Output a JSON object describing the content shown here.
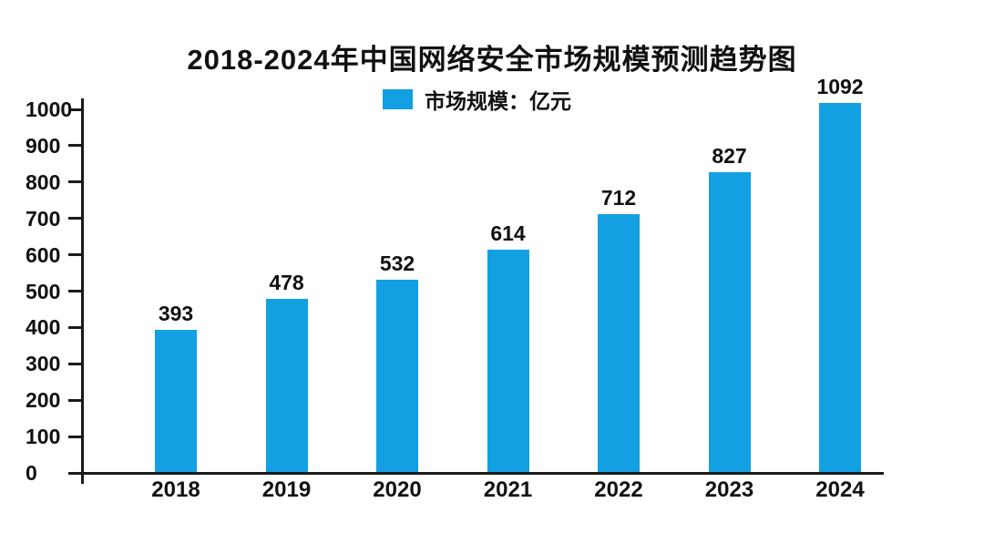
{
  "title": "2018-2024年中国网络安全市场规模预测趋势图",
  "legend": {
    "label": "市场规模：亿元"
  },
  "colors": {
    "bar": "#12A0E2",
    "axis": "#1a1a1a",
    "text": "#111111",
    "background": "#ffffff"
  },
  "chart_data": {
    "type": "bar",
    "title": "2018-2024年中国网络安全市场规模预测趋势图",
    "series_name": "市场规模：亿元",
    "categories": [
      "2018",
      "2019",
      "2020",
      "2021",
      "2022",
      "2023",
      "2024"
    ],
    "values": [
      393,
      478,
      532,
      614,
      712,
      827,
      1092
    ],
    "value_labels": [
      393,
      478,
      532,
      614,
      712,
      827,
      1092
    ],
    "xlabel": "",
    "ylabel": "",
    "ylim": [
      0,
      1000
    ],
    "yticks": [
      0,
      100,
      200,
      300,
      400,
      500,
      600,
      700,
      800,
      900,
      1000
    ],
    "grid": false,
    "legend_position": "top-center",
    "bar_color": "#12A0E2",
    "note": "2024 bar is clipped at plot-area top (~1015 on axis scale); value label 1092 shown above clipped bar"
  }
}
